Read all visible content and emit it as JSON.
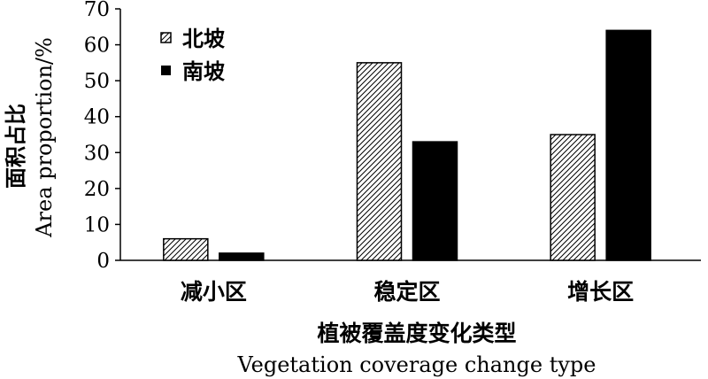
{
  "chart_data": {
    "type": "bar",
    "categories": [
      "减小区",
      "稳定区",
      "增长区"
    ],
    "series": [
      {
        "name": "北坡",
        "values": [
          6,
          55,
          35
        ],
        "pattern": "hatched"
      },
      {
        "name": "南坡",
        "values": [
          2,
          33,
          64
        ],
        "pattern": "solid"
      }
    ],
    "xlabel": "植被覆盖度变化类型",
    "xlabel_en": "Vegetation coverage change type",
    "ylabel": "面积占比",
    "ylabel_en": "Area proportion/%",
    "ylim": [
      0,
      70
    ],
    "yticks": [
      0,
      10,
      20,
      30,
      40,
      50,
      60,
      70
    ],
    "legend_position": "top-left",
    "grid": false,
    "colors": {
      "bar_fill": "#000000",
      "hatch_bg": "#ffffff",
      "axis": "#000000"
    }
  }
}
